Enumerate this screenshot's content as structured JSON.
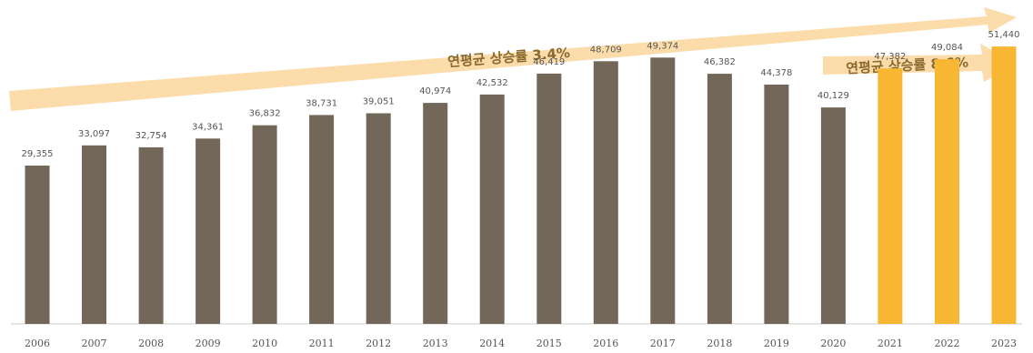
{
  "chart_data": {
    "type": "bar",
    "categories": [
      "2006",
      "2007",
      "2008",
      "2009",
      "2010",
      "2011",
      "2012",
      "2013",
      "2014",
      "2015",
      "2016",
      "2017",
      "2018",
      "2019",
      "2020",
      "2021",
      "2022",
      "2023"
    ],
    "values": [
      29355,
      33097,
      32754,
      34361,
      36832,
      38731,
      39051,
      40974,
      42532,
      46419,
      48709,
      49374,
      46382,
      44378,
      40129,
      47382,
      49084,
      51440
    ],
    "data_labels": [
      "29,355",
      "33,097",
      "32,754",
      "34,361",
      "36,832",
      "38,731",
      "39,051",
      "40,974",
      "42,532",
      "46,419",
      "48,709",
      "49,374",
      "46,382",
      "44,378",
      "40,129",
      "47,382",
      "49,084",
      "51,440"
    ],
    "highlight_from_index": 15,
    "colors": {
      "base": "#726758",
      "highlight": "#f7b733",
      "arrow": "#fcdcaa",
      "annotation_text": "#8a6a2e",
      "axis": "#cccccc"
    },
    "annotations": [
      {
        "text": "연평균 상승률 3.4%",
        "span": [
          "2006",
          "2020"
        ]
      },
      {
        "text": "연평균 상승률 8.6%",
        "span": [
          "2021",
          "2023"
        ]
      }
    ],
    "ylim": [
      0,
      55000
    ],
    "grid": false,
    "legend": "none"
  }
}
